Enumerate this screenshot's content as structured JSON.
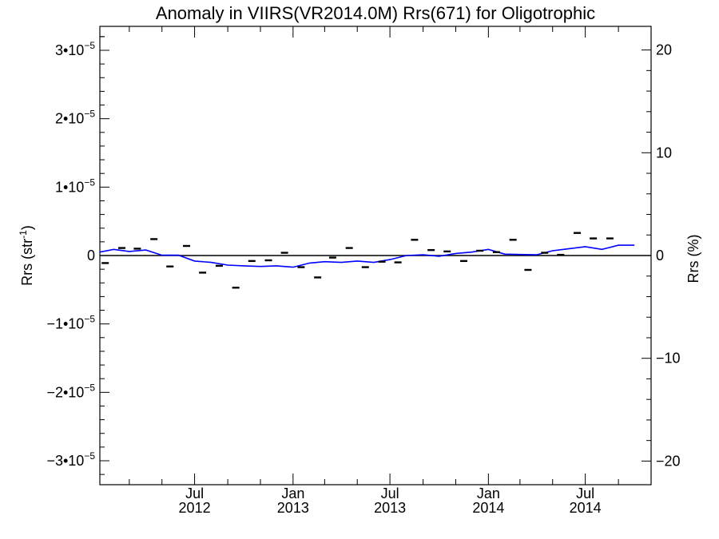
{
  "chart_data": {
    "type": "line",
    "title": "Anomaly in VIIRS(VR2014.0M) Rrs(671) for Oligotrophic",
    "ylabel_left": "Rrs (str",
    "ylabel_left_sup": "-1",
    "ylabel_left_end": ")",
    "ylabel_right": "Rrs (%)",
    "y_left_lim": [
      -3.35e-05,
      3.35e-05
    ],
    "y_right_lim": [
      -22.3,
      22.3
    ],
    "x_range": [
      "2012-01-06",
      "2014-11-01"
    ],
    "y_left_ticks": [
      {
        "value": 3e-05,
        "mant": "3•10",
        "exp": "−5"
      },
      {
        "value": 2e-05,
        "mant": "2•10",
        "exp": "−5"
      },
      {
        "value": 1e-05,
        "mant": "1•10",
        "exp": "−5"
      },
      {
        "value": 0,
        "mant": "0",
        "exp": ""
      },
      {
        "value": -1e-05,
        "mant": "−1•10",
        "exp": "−5"
      },
      {
        "value": -2e-05,
        "mant": "−2•10",
        "exp": "−5"
      },
      {
        "value": -3e-05,
        "mant": "−3•10",
        "exp": "−5"
      }
    ],
    "y_right_ticks": [
      {
        "value": 20,
        "label": "20"
      },
      {
        "value": 10,
        "label": "10"
      },
      {
        "value": 0,
        "label": "0"
      },
      {
        "value": -10,
        "label": "−10"
      },
      {
        "value": -20,
        "label": "−20"
      }
    ],
    "x_major_ticks": [
      {
        "date": "2012-07-01",
        "month": "Jul",
        "year": "2012"
      },
      {
        "date": "2013-01-01",
        "month": "Jan",
        "year": "2013"
      },
      {
        "date": "2013-07-01",
        "month": "Jul",
        "year": "2013"
      },
      {
        "date": "2014-01-01",
        "month": "Jan",
        "year": "2014"
      },
      {
        "date": "2014-07-01",
        "month": "Jul",
        "year": "2014"
      }
    ],
    "x_minor_ticks": [
      "2012-03-01",
      "2012-05-01",
      "2012-09-01",
      "2012-11-01",
      "2013-03-01",
      "2013-05-01",
      "2013-09-01",
      "2013-11-01",
      "2014-03-01",
      "2014-05-01",
      "2014-09-01"
    ],
    "series": [
      {
        "kind": "line",
        "color": "#0000ff",
        "points": [
          [
            "2012-01-06",
            5e-07
          ],
          [
            "2012-02-01",
            9e-07
          ],
          [
            "2012-03-01",
            6e-07
          ],
          [
            "2012-04-01",
            8e-07
          ],
          [
            "2012-05-01",
            5e-08
          ],
          [
            "2012-06-01",
            5e-08
          ],
          [
            "2012-07-01",
            -8e-07
          ],
          [
            "2012-08-01",
            -1e-06
          ],
          [
            "2012-09-01",
            -1.4e-06
          ],
          [
            "2012-10-01",
            -1.5e-06
          ],
          [
            "2012-11-01",
            -1.6e-06
          ],
          [
            "2012-12-01",
            -1.5e-06
          ],
          [
            "2013-01-01",
            -1.7e-06
          ],
          [
            "2013-02-01",
            -1.1e-06
          ],
          [
            "2013-03-01",
            -9e-07
          ],
          [
            "2013-04-01",
            -1e-06
          ],
          [
            "2013-05-01",
            -8e-07
          ],
          [
            "2013-06-01",
            -1e-06
          ],
          [
            "2013-07-01",
            -6e-07
          ],
          [
            "2013-08-01",
            0.0
          ],
          [
            "2013-09-01",
            1e-07
          ],
          [
            "2013-10-01",
            -1e-07
          ],
          [
            "2013-11-01",
            3e-07
          ],
          [
            "2013-12-01",
            5e-07
          ],
          [
            "2014-01-01",
            9e-07
          ],
          [
            "2014-02-01",
            2e-07
          ],
          [
            "2014-03-01",
            1.5e-07
          ],
          [
            "2014-04-01",
            1e-07
          ],
          [
            "2014-05-01",
            7e-07
          ],
          [
            "2014-06-01",
            1e-06
          ],
          [
            "2014-07-01",
            1.3e-06
          ],
          [
            "2014-08-01",
            9e-07
          ],
          [
            "2014-09-01",
            1.5e-06
          ],
          [
            "2014-10-01",
            1.5e-06
          ]
        ]
      },
      {
        "kind": "dash",
        "color": "#000000",
        "points": [
          [
            "2012-01-16",
            -1.1e-06
          ],
          [
            "2012-02-16",
            1.1e-06
          ],
          [
            "2012-03-16",
            1e-06
          ],
          [
            "2012-04-16",
            2.4e-06
          ],
          [
            "2012-05-16",
            -1.6e-06
          ],
          [
            "2012-06-16",
            1.4e-06
          ],
          [
            "2012-07-16",
            -2.5e-06
          ],
          [
            "2012-08-16",
            -1.5e-06
          ],
          [
            "2012-09-16",
            -4.7e-06
          ],
          [
            "2012-10-16",
            -8e-07
          ],
          [
            "2012-11-16",
            -7e-07
          ],
          [
            "2012-12-16",
            4e-07
          ],
          [
            "2013-01-16",
            -1.7e-06
          ],
          [
            "2013-02-16",
            -3.2e-06
          ],
          [
            "2013-03-16",
            -3e-07
          ],
          [
            "2013-04-16",
            1.1e-06
          ],
          [
            "2013-05-16",
            -1.7e-06
          ],
          [
            "2013-06-16",
            -9e-07
          ],
          [
            "2013-07-16",
            -1e-06
          ],
          [
            "2013-08-16",
            2.3e-06
          ],
          [
            "2013-09-16",
            8e-07
          ],
          [
            "2013-10-16",
            6e-07
          ],
          [
            "2013-11-16",
            -8e-07
          ],
          [
            "2013-12-16",
            7e-07
          ],
          [
            "2014-01-16",
            5e-07
          ],
          [
            "2014-02-16",
            2.3e-06
          ],
          [
            "2014-03-16",
            -2.1e-06
          ],
          [
            "2014-04-16",
            4e-07
          ],
          [
            "2014-05-16",
            1e-07
          ],
          [
            "2014-06-16",
            3.3e-06
          ],
          [
            "2014-07-16",
            2.5e-06
          ],
          [
            "2014-08-16",
            2.5e-06
          ]
        ]
      }
    ],
    "grid": false,
    "legend": "none"
  }
}
